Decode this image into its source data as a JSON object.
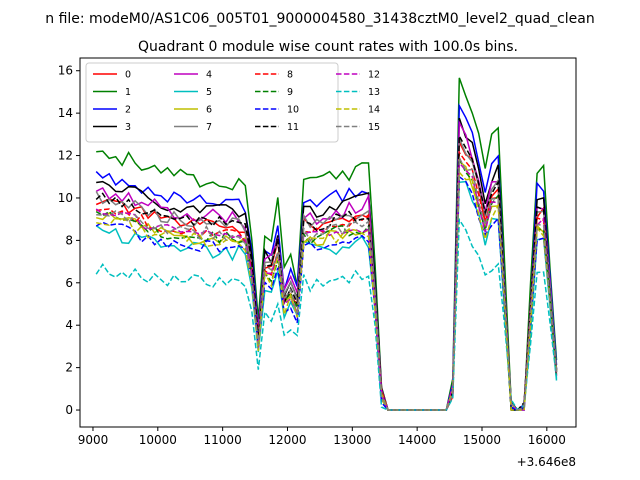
{
  "chart_data": {
    "type": "line",
    "suptitle": "n file: modeM0/AS1C06_005T01_9000004580_31438cztM0_level2_quad_clean",
    "title": "Quadrant 0 module wise count rates with 100.0s bins.",
    "xlabel": "",
    "ylabel": "",
    "x_offset_label": "+3.646e8",
    "xlim": [
      8800,
      16450
    ],
    "ylim": [
      -0.8,
      16.6
    ],
    "x_ticks": [
      9000,
      10000,
      11000,
      12000,
      13000,
      14000,
      15000,
      16000
    ],
    "x_tick_labels": [
      "9000",
      "10000",
      "11000",
      "12000",
      "13000",
      "14000",
      "15000",
      "16000"
    ],
    "y_ticks": [
      0,
      2,
      4,
      6,
      8,
      10,
      12,
      14,
      16
    ],
    "y_tick_labels": [
      "0",
      "2",
      "4",
      "6",
      "8",
      "10",
      "12",
      "14",
      "16"
    ],
    "legend_position": "upper-left",
    "legend_columns": 4,
    "series": [
      {
        "name": "0",
        "color": "#ff0000",
        "dash": "solid",
        "scale": 0.95,
        "noise": 0.15
      },
      {
        "name": "1",
        "color": "#008000",
        "dash": "solid",
        "scale": 1.18,
        "noise": 0.2
      },
      {
        "name": "2",
        "color": "#0000ff",
        "dash": "solid",
        "scale": 1.07,
        "noise": 0.15
      },
      {
        "name": "3",
        "color": "#000000",
        "dash": "solid",
        "scale": 1.03,
        "noise": 0.15
      },
      {
        "name": "4",
        "color": "#bf00bf",
        "dash": "solid",
        "scale": 1.0,
        "noise": 0.2
      },
      {
        "name": "5",
        "color": "#00bfbf",
        "dash": "solid",
        "scale": 0.82,
        "noise": 0.2
      },
      {
        "name": "6",
        "color": "#bfbf00",
        "dash": "solid",
        "scale": 0.88,
        "noise": 0.15
      },
      {
        "name": "7",
        "color": "#808080",
        "dash": "solid",
        "scale": 0.97,
        "noise": 0.15
      },
      {
        "name": "8",
        "color": "#ff0000",
        "dash": "dashed",
        "scale": 0.92,
        "noise": 0.15
      },
      {
        "name": "9",
        "color": "#008000",
        "dash": "dashed",
        "scale": 0.89,
        "noise": 0.15
      },
      {
        "name": "10",
        "color": "#0000ff",
        "dash": "dashed",
        "scale": 0.84,
        "noise": 0.15
      },
      {
        "name": "11",
        "color": "#000000",
        "dash": "dashed",
        "scale": 0.96,
        "noise": 0.15
      },
      {
        "name": "12",
        "color": "#bf00bf",
        "dash": "dashed",
        "scale": 0.9,
        "noise": 0.15
      },
      {
        "name": "13",
        "color": "#00bfbf",
        "dash": "dashed",
        "scale": 0.65,
        "noise": 0.2
      },
      {
        "name": "14",
        "color": "#bfbf00",
        "dash": "dashed",
        "scale": 0.87,
        "noise": 0.15
      },
      {
        "name": "15",
        "color": "#808080",
        "dash": "dashed",
        "scale": 0.91,
        "noise": 0.15
      }
    ],
    "base_profile": [
      [
        9050,
        10.4
      ],
      [
        9200,
        10.3
      ],
      [
        9400,
        10.1
      ],
      [
        9600,
        10.0
      ],
      [
        9800,
        9.7
      ],
      [
        10000,
        9.5
      ],
      [
        10300,
        9.3
      ],
      [
        10600,
        9.2
      ],
      [
        10900,
        9.2
      ],
      [
        11200,
        9.1
      ],
      [
        11350,
        8.9
      ],
      [
        11450,
        7.0
      ],
      [
        11550,
        3.5
      ],
      [
        11650,
        7.2
      ],
      [
        11750,
        7.0
      ],
      [
        11850,
        8.2
      ],
      [
        11950,
        5.5
      ],
      [
        12050,
        6.0
      ],
      [
        12150,
        5.2
      ],
      [
        12250,
        9.3
      ],
      [
        12400,
        9.0
      ],
      [
        12700,
        9.4
      ],
      [
        13000,
        9.5
      ],
      [
        13250,
        9.7
      ],
      [
        13300,
        9.8
      ],
      [
        13400,
        1.5
      ],
      [
        13500,
        0.0
      ],
      [
        14500,
        0.0
      ],
      [
        14550,
        1.0
      ],
      [
        14650,
        13.2
      ],
      [
        14750,
        12.7
      ],
      [
        14850,
        12.2
      ],
      [
        15050,
        9.5
      ],
      [
        15200,
        11.3
      ],
      [
        15300,
        10.8
      ],
      [
        15400,
        0.3
      ],
      [
        15500,
        0.0
      ],
      [
        15600,
        0.0
      ],
      [
        15700,
        0.2
      ],
      [
        15800,
        9.5
      ],
      [
        15900,
        10.0
      ],
      [
        16000,
        9.5
      ],
      [
        16100,
        2.0
      ]
    ]
  }
}
